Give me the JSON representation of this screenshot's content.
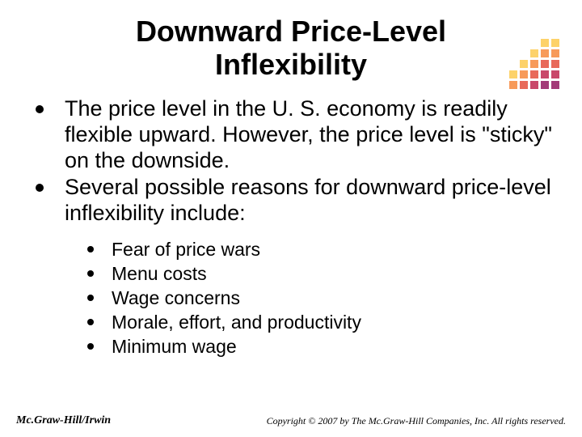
{
  "title_line1": "Downward Price-Level",
  "title_line2": "Inflexibility",
  "bullets": [
    "The price level in the U. S. economy is readily flexible upward.  However, the price level is \"sticky\" on the downside.",
    "Several possible reasons for downward price-level inflexibility include:"
  ],
  "sub_bullets": [
    "Fear of price wars",
    "Menu costs",
    "Wage concerns",
    "Morale, effort, and productivity",
    "Minimum wage"
  ],
  "footer_left": "Mc.Graw-Hill/Irwin",
  "footer_right": "Copyright © 2007 by The Mc.Graw-Hill Companies, Inc. All rights reserved.",
  "decor_colors": [
    "#ffffff",
    "#ffffff",
    "#ffffff",
    "#fdd26a",
    "#fdd26a",
    "#ffffff",
    "#ffffff",
    "#fdd26a",
    "#f79a5a",
    "#f79a5a",
    "#ffffff",
    "#fdd26a",
    "#f79a5a",
    "#e86a5a",
    "#e86a5a",
    "#fdd26a",
    "#f79a5a",
    "#e86a5a",
    "#c9486a",
    "#c9486a",
    "#f79a5a",
    "#e86a5a",
    "#c9486a",
    "#a33a78",
    "#a33a78"
  ]
}
